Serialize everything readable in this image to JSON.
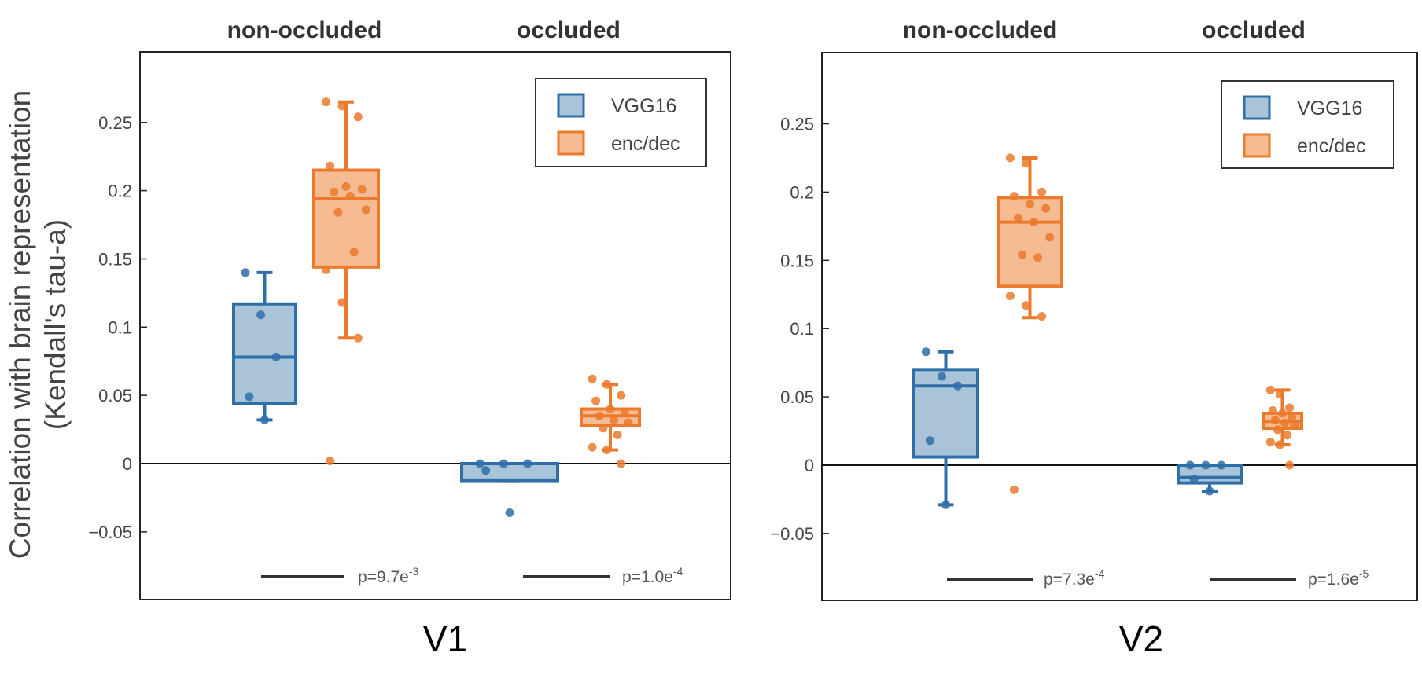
{
  "chart_data": {
    "type": "box",
    "ylabel_line1": "Correlation with brain representation",
    "ylabel_line2": "(Kendall's tau-a)",
    "categories": [
      "non-occluded",
      "occluded"
    ],
    "yticks": [
      {
        "value": 0.25,
        "label": "0.25"
      },
      {
        "value": 0.2,
        "label": "0.2"
      },
      {
        "value": 0.15,
        "label": "0.15"
      },
      {
        "value": 0.1,
        "label": "0.1"
      },
      {
        "value": 0.05,
        "label": "0.05"
      },
      {
        "value": 0,
        "label": "0"
      },
      {
        "value": -0.05,
        "label": "−0.05"
      }
    ],
    "ylim": [
      -0.1,
      0.3
    ],
    "grid": false,
    "legend_position": "top-right",
    "series": [
      {
        "name": "VGG16",
        "color": "#2f6fa8",
        "fill": "#a9c3d9"
      },
      {
        "name": "enc/dec",
        "color": "#ec7a2c",
        "fill": "#f5bc94"
      }
    ],
    "panels": [
      {
        "title": "V1",
        "pvalues": [
          {
            "base": "p=9.7e",
            "exp": "-3"
          },
          {
            "base": "p=1.0e",
            "exp": "-4"
          }
        ],
        "groups": [
          {
            "category": "non-occluded",
            "boxes": [
              {
                "series": "VGG16",
                "q1": 0.044,
                "median": 0.078,
                "q3": 0.117,
                "whisker_low": 0.032,
                "whisker_high": 0.14,
                "points": [
                  0.14,
                  0.109,
                  0.078,
                  0.049,
                  0.032
                ]
              },
              {
                "series": "enc/dec",
                "q1": 0.144,
                "median": 0.194,
                "q3": 0.215,
                "whisker_low": 0.092,
                "whisker_high": 0.265,
                "points": [
                  0.265,
                  0.262,
                  0.254,
                  0.218,
                  0.203,
                  0.201,
                  0.199,
                  0.196,
                  0.186,
                  0.184,
                  0.155,
                  0.142,
                  0.118,
                  0.092,
                  0.002
                ]
              }
            ]
          },
          {
            "category": "occluded",
            "boxes": [
              {
                "series": "VGG16",
                "q1": -0.013,
                "median": -0.012,
                "q3": 0.0,
                "whisker_low": -0.013,
                "whisker_high": 0.0,
                "points": [
                  0.0,
                  0.0,
                  0.0,
                  -0.005,
                  -0.036
                ]
              },
              {
                "series": "enc/dec",
                "q1": 0.028,
                "median": 0.035,
                "q3": 0.04,
                "whisker_low": 0.01,
                "whisker_high": 0.058,
                "points": [
                  0.062,
                  0.058,
                  0.05,
                  0.046,
                  0.04,
                  0.037,
                  0.035,
                  0.032,
                  0.03,
                  0.026,
                  0.021,
                  0.012,
                  0.01,
                  0.0
                ]
              }
            ]
          }
        ]
      },
      {
        "title": "V2",
        "pvalues": [
          {
            "base": "p=7.3e",
            "exp": "-4"
          },
          {
            "base": "p=1.6e",
            "exp": "-5"
          }
        ],
        "groups": [
          {
            "category": "non-occluded",
            "boxes": [
              {
                "series": "VGG16",
                "q1": 0.006,
                "median": 0.058,
                "q3": 0.07,
                "whisker_low": -0.029,
                "whisker_high": 0.083,
                "points": [
                  0.083,
                  0.065,
                  0.058,
                  0.018,
                  -0.029
                ]
              },
              {
                "series": "enc/dec",
                "q1": 0.131,
                "median": 0.178,
                "q3": 0.196,
                "whisker_low": 0.108,
                "whisker_high": 0.225,
                "points": [
                  0.225,
                  0.221,
                  0.2,
                  0.197,
                  0.191,
                  0.188,
                  0.181,
                  0.178,
                  0.167,
                  0.154,
                  0.152,
                  0.124,
                  0.117,
                  0.109,
                  -0.018
                ]
              }
            ]
          },
          {
            "category": "occluded",
            "boxes": [
              {
                "series": "VGG16",
                "q1": -0.013,
                "median": -0.009,
                "q3": 0.0,
                "whisker_low": -0.019,
                "whisker_high": 0.0,
                "points": [
                  0.0,
                  0.0,
                  0.0,
                  -0.01,
                  -0.019
                ]
              },
              {
                "series": "enc/dec",
                "q1": 0.027,
                "median": 0.032,
                "q3": 0.038,
                "whisker_low": 0.015,
                "whisker_high": 0.055,
                "points": [
                  0.055,
                  0.052,
                  0.042,
                  0.04,
                  0.038,
                  0.035,
                  0.033,
                  0.031,
                  0.029,
                  0.026,
                  0.022,
                  0.017,
                  0.015,
                  0.0
                ]
              }
            ]
          }
        ]
      }
    ]
  }
}
